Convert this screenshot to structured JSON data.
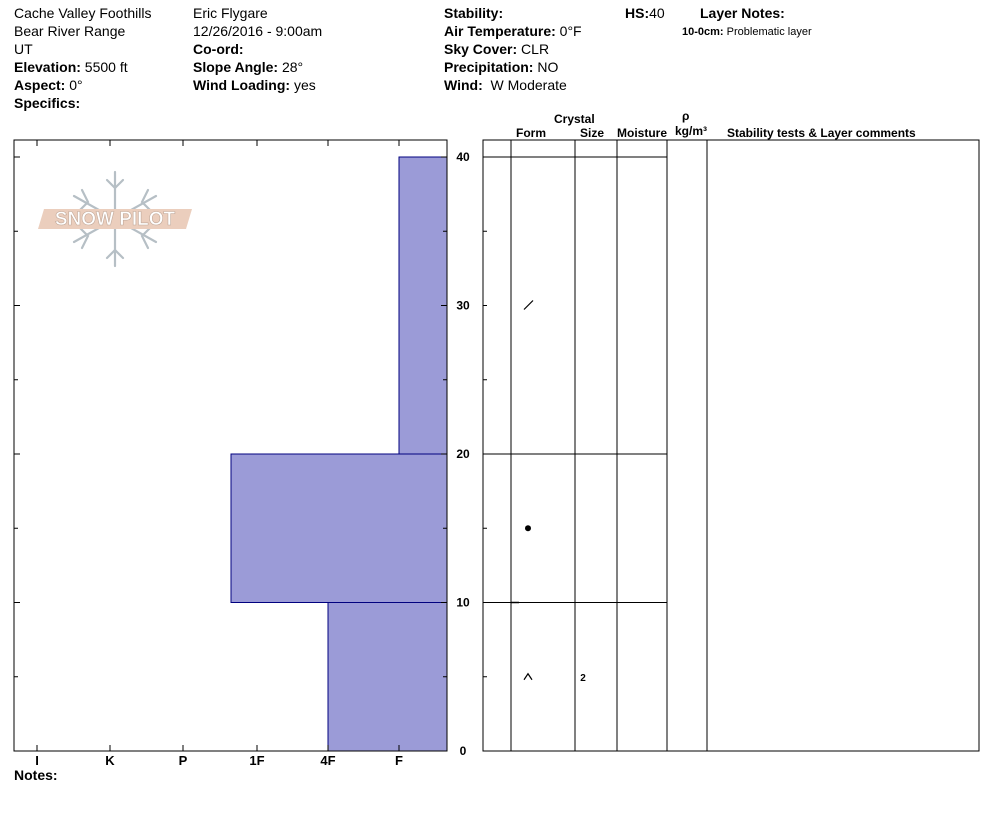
{
  "header": {
    "location": "Cache Valley Foothills",
    "range": "Bear River Range",
    "state": "UT",
    "elevation_label": "Elevation:",
    "elevation": "5500 ft",
    "aspect_label": "Aspect:",
    "aspect": "0°",
    "specifics_label": "Specifics:",
    "observer": "Eric Flygare",
    "datetime": "12/26/2016 - 9:00am",
    "coord_label": "Co-ord:",
    "slope_label": "Slope Angle:",
    "slope": "28°",
    "wind_loading_label": "Wind Loading:",
    "wind_loading": "yes",
    "stability_label": "Stability:",
    "air_temp_label": "Air Temperature:",
    "air_temp": "0°F",
    "sky_label": "Sky Cover:",
    "sky": "CLR",
    "precip_label": "Precipitation:",
    "precip": "NO",
    "wind_label": "Wind:",
    "wind": "W Moderate",
    "hs_label": "HS:",
    "hs": "40",
    "layer_notes_label": "Layer Notes:",
    "layer_note_depth": "10-0cm:",
    "layer_note_text": "Problematic layer"
  },
  "notes_label": "Notes:",
  "logo_text": "SNOW PILOT",
  "columns": {
    "crystal": "Crystal",
    "form": "Form",
    "size": "Size",
    "moisture": "Moisture",
    "rho": "ρ",
    "density_unit": "kg/m³",
    "stability": "Stability tests & Layer comments"
  },
  "colors": {
    "hardness_fill": "#9b9bd7",
    "hardness_stroke": "#00007f"
  },
  "chart_data": {
    "type": "bar",
    "hardness_scale": [
      "I",
      "K",
      "P",
      "1F",
      "4F",
      "F"
    ],
    "y_ticks": [
      0,
      10,
      20,
      30,
      40
    ],
    "ylim": [
      0,
      40
    ],
    "layers": [
      {
        "top": 40,
        "bottom": 20,
        "hardness": "F"
      },
      {
        "top": 20,
        "bottom": 10,
        "hardness": "1F-"
      },
      {
        "top": 10,
        "bottom": 0,
        "hardness": "4F"
      }
    ],
    "grain_forms": [
      {
        "depth": 30,
        "symbol": "decomposing",
        "size": ""
      },
      {
        "depth": 15,
        "symbol": "rounded",
        "size": ""
      },
      {
        "depth": 5,
        "symbol": "faceted",
        "size": "2"
      }
    ]
  }
}
